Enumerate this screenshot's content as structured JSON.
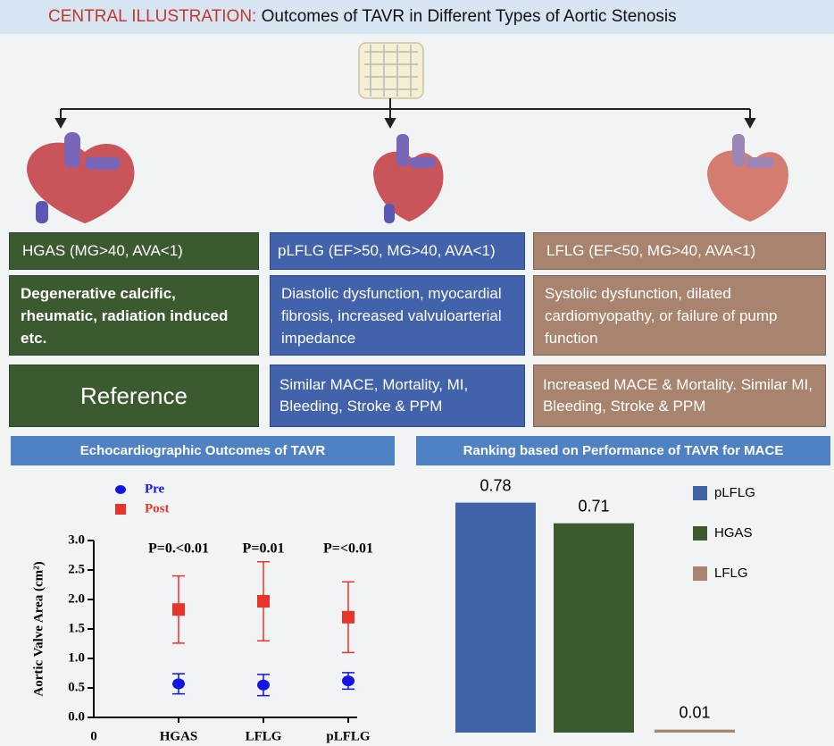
{
  "header": {
    "label": "CENTRAL ILLUSTRATION:",
    "title": "Outcomes of TAVR in Different Types of Aortic Stenosis"
  },
  "groups": [
    {
      "name": "HGAS (MG>40, AVA<1)",
      "mechanism": "Degenerative calcific, rheumatic, radiation induced etc.",
      "outcome": "Reference"
    },
    {
      "name": "pLFLG (EF>50, MG>40, AVA<1)",
      "mechanism": "Diastolic dysfunction, myocardial fibrosis, increased valvuloarterial impedance",
      "outcome": "Similar MACE, Mortality, MI, Bleeding, Stroke & PPM"
    },
    {
      "name": "LFLG (EF<50, MG>40, AVA<1)",
      "mechanism": "Systolic dysfunction, dilated cardiomyopathy, or failure of pump function",
      "outcome": "Increased MACE & Mortality. Similar MI, Bleeding, Stroke & PPM"
    }
  ],
  "chart_data": [
    {
      "type": "errorbar",
      "title": "Echocardiographic Outcomes of TAVR",
      "y_label": "Aortic Valve Area (cm²)",
      "categories": [
        "0",
        "HGAS",
        "LFLG",
        "pLFLG"
      ],
      "p_values": [
        null,
        "P=0.<0.01",
        "P=0.01",
        "P=<0.01"
      ],
      "series": [
        {
          "name": "Pre",
          "color": "#1414e6",
          "values": [
            null,
            0.57,
            0.55,
            0.62
          ],
          "errors": [
            null,
            0.17,
            0.18,
            0.14
          ]
        },
        {
          "name": "Post",
          "color": "#e8352b",
          "values": [
            null,
            1.83,
            1.97,
            1.7
          ],
          "errors": [
            null,
            0.57,
            0.67,
            0.6
          ]
        }
      ],
      "ylim": [
        0,
        3
      ],
      "yticks": [
        {
          "value": 0,
          "label": "0.0"
        },
        0.5,
        {
          "value": 1,
          "label": "1.0"
        },
        1.5,
        {
          "value": 2,
          "label": "2.0"
        },
        2.5,
        {
          "value": 3,
          "label": "3.0"
        }
      ]
    },
    {
      "type": "bar",
      "title": "Ranking based on Performance of TAVR for MACE",
      "categories": [
        "pLFLG",
        "HGAS",
        "LFLG"
      ],
      "values": [
        0.78,
        0.71,
        0.01
      ],
      "colors": [
        "#4063a8",
        "#3b5a2f",
        "#a8836d"
      ]
    }
  ]
}
